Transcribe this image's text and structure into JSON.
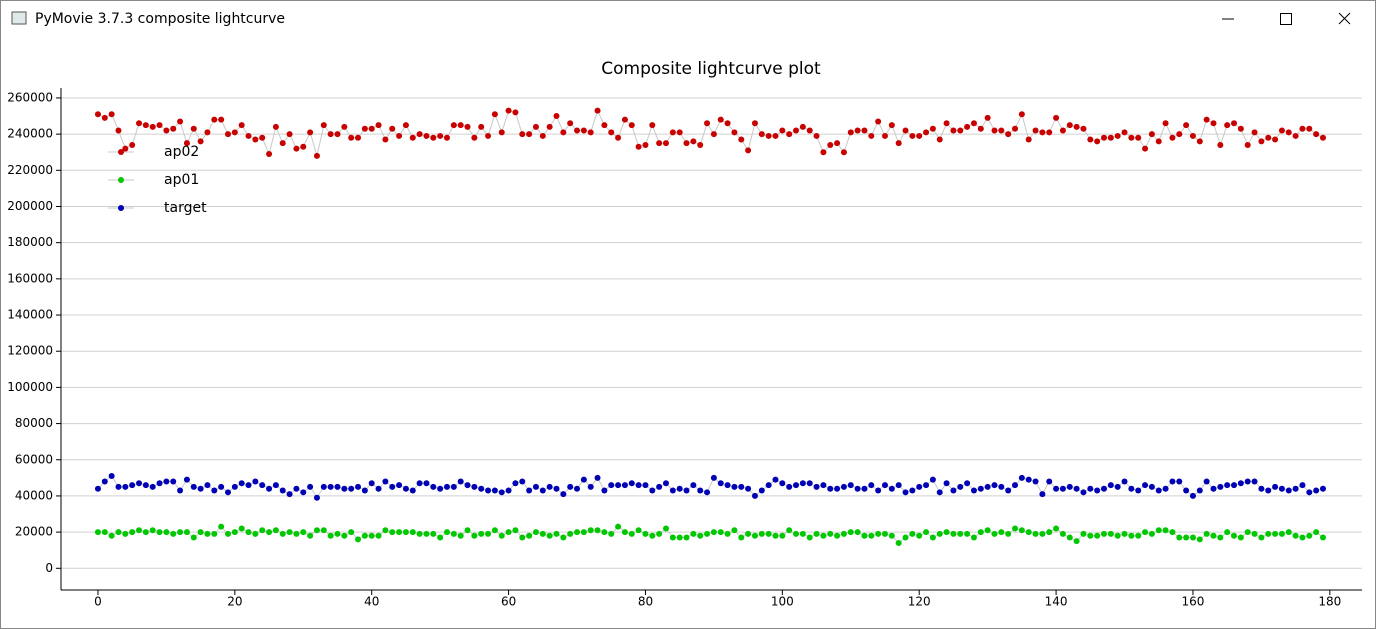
{
  "window": {
    "title": "PyMovie 3.7.3 composite lightcurve"
  },
  "chart_data": {
    "type": "scatter",
    "title": "Composite lightcurve plot",
    "x": [
      0,
      1,
      2,
      3,
      4,
      5,
      6,
      7,
      8,
      9,
      10,
      11,
      12,
      13,
      14,
      15,
      16,
      17,
      18,
      19,
      20,
      21,
      22,
      23,
      24,
      25,
      26,
      27,
      28,
      29,
      30,
      31,
      32,
      33,
      34,
      35,
      36,
      37,
      38,
      39,
      40,
      41,
      42,
      43,
      44,
      45,
      46,
      47,
      48,
      49,
      50,
      51,
      52,
      53,
      54,
      55,
      56,
      57,
      58,
      59,
      60,
      61,
      62,
      63,
      64,
      65,
      66,
      67,
      68,
      69,
      70,
      71,
      72,
      73,
      74,
      75,
      76,
      77,
      78,
      79,
      80,
      81,
      82,
      83,
      84,
      85,
      86,
      87,
      88,
      89,
      90,
      91,
      92,
      93,
      94,
      95,
      96,
      97,
      98,
      99,
      100,
      101,
      102,
      103,
      104,
      105,
      106,
      107,
      108,
      109,
      110,
      111,
      112,
      113,
      114,
      115,
      116,
      117,
      118,
      119,
      120,
      121,
      122,
      123,
      124,
      125,
      126,
      127,
      128,
      129,
      130,
      131,
      132,
      133,
      134,
      135,
      136,
      137,
      138,
      139,
      140,
      141,
      142,
      143,
      144,
      145,
      146,
      147,
      148,
      149,
      150,
      151,
      152,
      153,
      154,
      155,
      156,
      157,
      158,
      159,
      160,
      161,
      162,
      163,
      164,
      165,
      166,
      167,
      168,
      169,
      170,
      171,
      172,
      173,
      174,
      175,
      176,
      177,
      178,
      179
    ],
    "series": [
      {
        "name": "ap02",
        "color": "#c80000",
        "values": [
          251000,
          249000,
          251000,
          242000,
          232000,
          234000,
          246000,
          245000,
          244000,
          245000,
          242000,
          243000,
          247000,
          235000,
          243000,
          236000,
          241000,
          248000,
          248000,
          240000,
          241000,
          245000,
          239000,
          237000,
          238000,
          229000,
          244000,
          235000,
          240000,
          232000,
          233000,
          241000,
          228000,
          245000,
          240000,
          240000,
          244000,
          238000,
          238000,
          243000,
          243000,
          245000,
          237000,
          243000,
          239000,
          245000,
          238000,
          240000,
          239000,
          238000,
          239000,
          238000,
          245000,
          245000,
          244000,
          238000,
          244000,
          239000,
          251000,
          241000,
          253000,
          252000,
          240000,
          240000,
          244000,
          239000,
          244000,
          250000,
          241000,
          246000,
          242000,
          242000,
          241000,
          253000,
          245000,
          241000,
          238000,
          248000,
          245000,
          233000,
          234000,
          245000,
          235000,
          235000,
          241000,
          241000,
          235000,
          236000,
          234000,
          246000,
          240000,
          248000,
          246000,
          241000,
          237000,
          231000,
          246000,
          240000,
          239000,
          239000,
          242000,
          240000,
          242000,
          244000,
          242000,
          239000,
          230000,
          234000,
          235000,
          230000,
          241000,
          242000,
          242000,
          239000,
          247000,
          239000,
          245000,
          235000,
          242000,
          239000,
          239000,
          241000,
          243000,
          237000,
          246000,
          242000,
          242000,
          244000,
          246000,
          243000,
          249000,
          242000,
          242000,
          240000,
          243000,
          251000,
          237000,
          242000,
          241000,
          241000,
          249000,
          242000,
          245000,
          244000,
          243000,
          237000,
          236000,
          238000,
          238000,
          239000,
          241000,
          238000,
          238000,
          232000,
          240000,
          236000,
          246000,
          238000,
          240000,
          245000,
          239000,
          236000,
          248000,
          246000,
          234000,
          245000,
          246000,
          243000,
          234000,
          241000,
          236000,
          238000,
          237000,
          242000,
          241000,
          239000,
          243000,
          243000,
          240000,
          238000
        ]
      },
      {
        "name": "ap01",
        "color": "#00c800",
        "values": [
          20000,
          20000,
          18000,
          20000,
          19000,
          20000,
          21000,
          20000,
          21000,
          20000,
          20000,
          19000,
          20000,
          20000,
          17000,
          20000,
          19000,
          19000,
          23000,
          19000,
          20000,
          22000,
          20000,
          19000,
          21000,
          20000,
          21000,
          19000,
          20000,
          19000,
          20000,
          18000,
          21000,
          21000,
          18000,
          19000,
          18000,
          20000,
          16000,
          18000,
          18000,
          18000,
          21000,
          20000,
          20000,
          20000,
          20000,
          19000,
          19000,
          19000,
          17000,
          20000,
          19000,
          18000,
          21000,
          18000,
          19000,
          19000,
          21000,
          18000,
          20000,
          21000,
          17000,
          18000,
          20000,
          19000,
          18000,
          19000,
          17000,
          19000,
          20000,
          20000,
          21000,
          21000,
          20000,
          19000,
          23000,
          20000,
          19000,
          21000,
          19000,
          18000,
          19000,
          22000,
          17000,
          17000,
          17000,
          19000,
          18000,
          19000,
          20000,
          20000,
          19000,
          21000,
          17000,
          19000,
          18000,
          19000,
          19000,
          18000,
          18000,
          21000,
          19000,
          19000,
          17000,
          19000,
          18000,
          19000,
          18000,
          19000,
          20000,
          20000,
          18000,
          18000,
          19000,
          19000,
          18000,
          14000,
          17000,
          19000,
          18000,
          20000,
          17000,
          19000,
          20000,
          19000,
          19000,
          19000,
          17000,
          20000,
          21000,
          19000,
          20000,
          19000,
          22000,
          21000,
          20000,
          19000,
          19000,
          20000,
          22000,
          19000,
          17000,
          15000,
          19000,
          18000,
          18000,
          19000,
          19000,
          18000,
          19000,
          18000,
          18000,
          20000,
          19000,
          21000,
          21000,
          20000,
          17000,
          17000,
          17000,
          16000,
          19000,
          18000,
          17000,
          20000,
          18000,
          17000,
          20000,
          19000,
          17000,
          19000,
          19000,
          19000,
          20000,
          18000,
          17000,
          18000,
          20000,
          17000
        ]
      },
      {
        "name": "target",
        "color": "#0000b4",
        "values": [
          44000,
          48000,
          51000,
          45000,
          45000,
          46000,
          47000,
          46000,
          45000,
          47000,
          48000,
          48000,
          43000,
          49000,
          45000,
          44000,
          46000,
          43000,
          45000,
          42000,
          45000,
          47000,
          46000,
          48000,
          46000,
          44000,
          46000,
          43000,
          41000,
          44000,
          42000,
          45000,
          39000,
          45000,
          45000,
          45000,
          44000,
          44000,
          45000,
          43000,
          47000,
          44000,
          48000,
          45000,
          46000,
          44000,
          43000,
          47000,
          47000,
          45000,
          44000,
          45000,
          45000,
          48000,
          46000,
          45000,
          44000,
          43000,
          43000,
          42000,
          43000,
          47000,
          48000,
          43000,
          45000,
          43000,
          45000,
          44000,
          41000,
          45000,
          44000,
          49000,
          45000,
          50000,
          43000,
          46000,
          46000,
          46000,
          47000,
          46000,
          46000,
          43000,
          45000,
          47000,
          43000,
          44000,
          43000,
          46000,
          43000,
          42000,
          50000,
          47000,
          46000,
          45000,
          45000,
          44000,
          40000,
          43000,
          46000,
          49000,
          47000,
          45000,
          46000,
          47000,
          47000,
          45000,
          46000,
          44000,
          44000,
          45000,
          46000,
          44000,
          44000,
          46000,
          43000,
          46000,
          44000,
          46000,
          42000,
          43000,
          45000,
          46000,
          49000,
          42000,
          47000,
          43000,
          45000,
          47000,
          43000,
          44000,
          45000,
          46000,
          45000,
          43000,
          46000,
          50000,
          49000,
          48000,
          41000,
          48000,
          44000,
          44000,
          45000,
          44000,
          42000,
          44000,
          43000,
          44000,
          46000,
          45000,
          48000,
          44000,
          43000,
          46000,
          45000,
          43000,
          44000,
          48000,
          48000,
          43000,
          40000,
          43000,
          48000,
          44000,
          45000,
          46000,
          46000,
          47000,
          48000,
          48000,
          44000,
          43000,
          45000,
          44000,
          43000,
          44000,
          46000,
          42000,
          43000,
          44000
        ]
      }
    ],
    "xlim": [
      -5.4,
      184.7
    ],
    "ylim": [
      -12000,
      265500
    ],
    "xticks": [
      0,
      20,
      40,
      60,
      80,
      100,
      120,
      140,
      160,
      180
    ],
    "yticks": [
      0,
      20000,
      40000,
      60000,
      80000,
      100000,
      120000,
      140000,
      160000,
      180000,
      200000,
      220000,
      240000,
      260000
    ],
    "grid": true,
    "legend": "upper left",
    "line_color": "#c8c8c8"
  }
}
